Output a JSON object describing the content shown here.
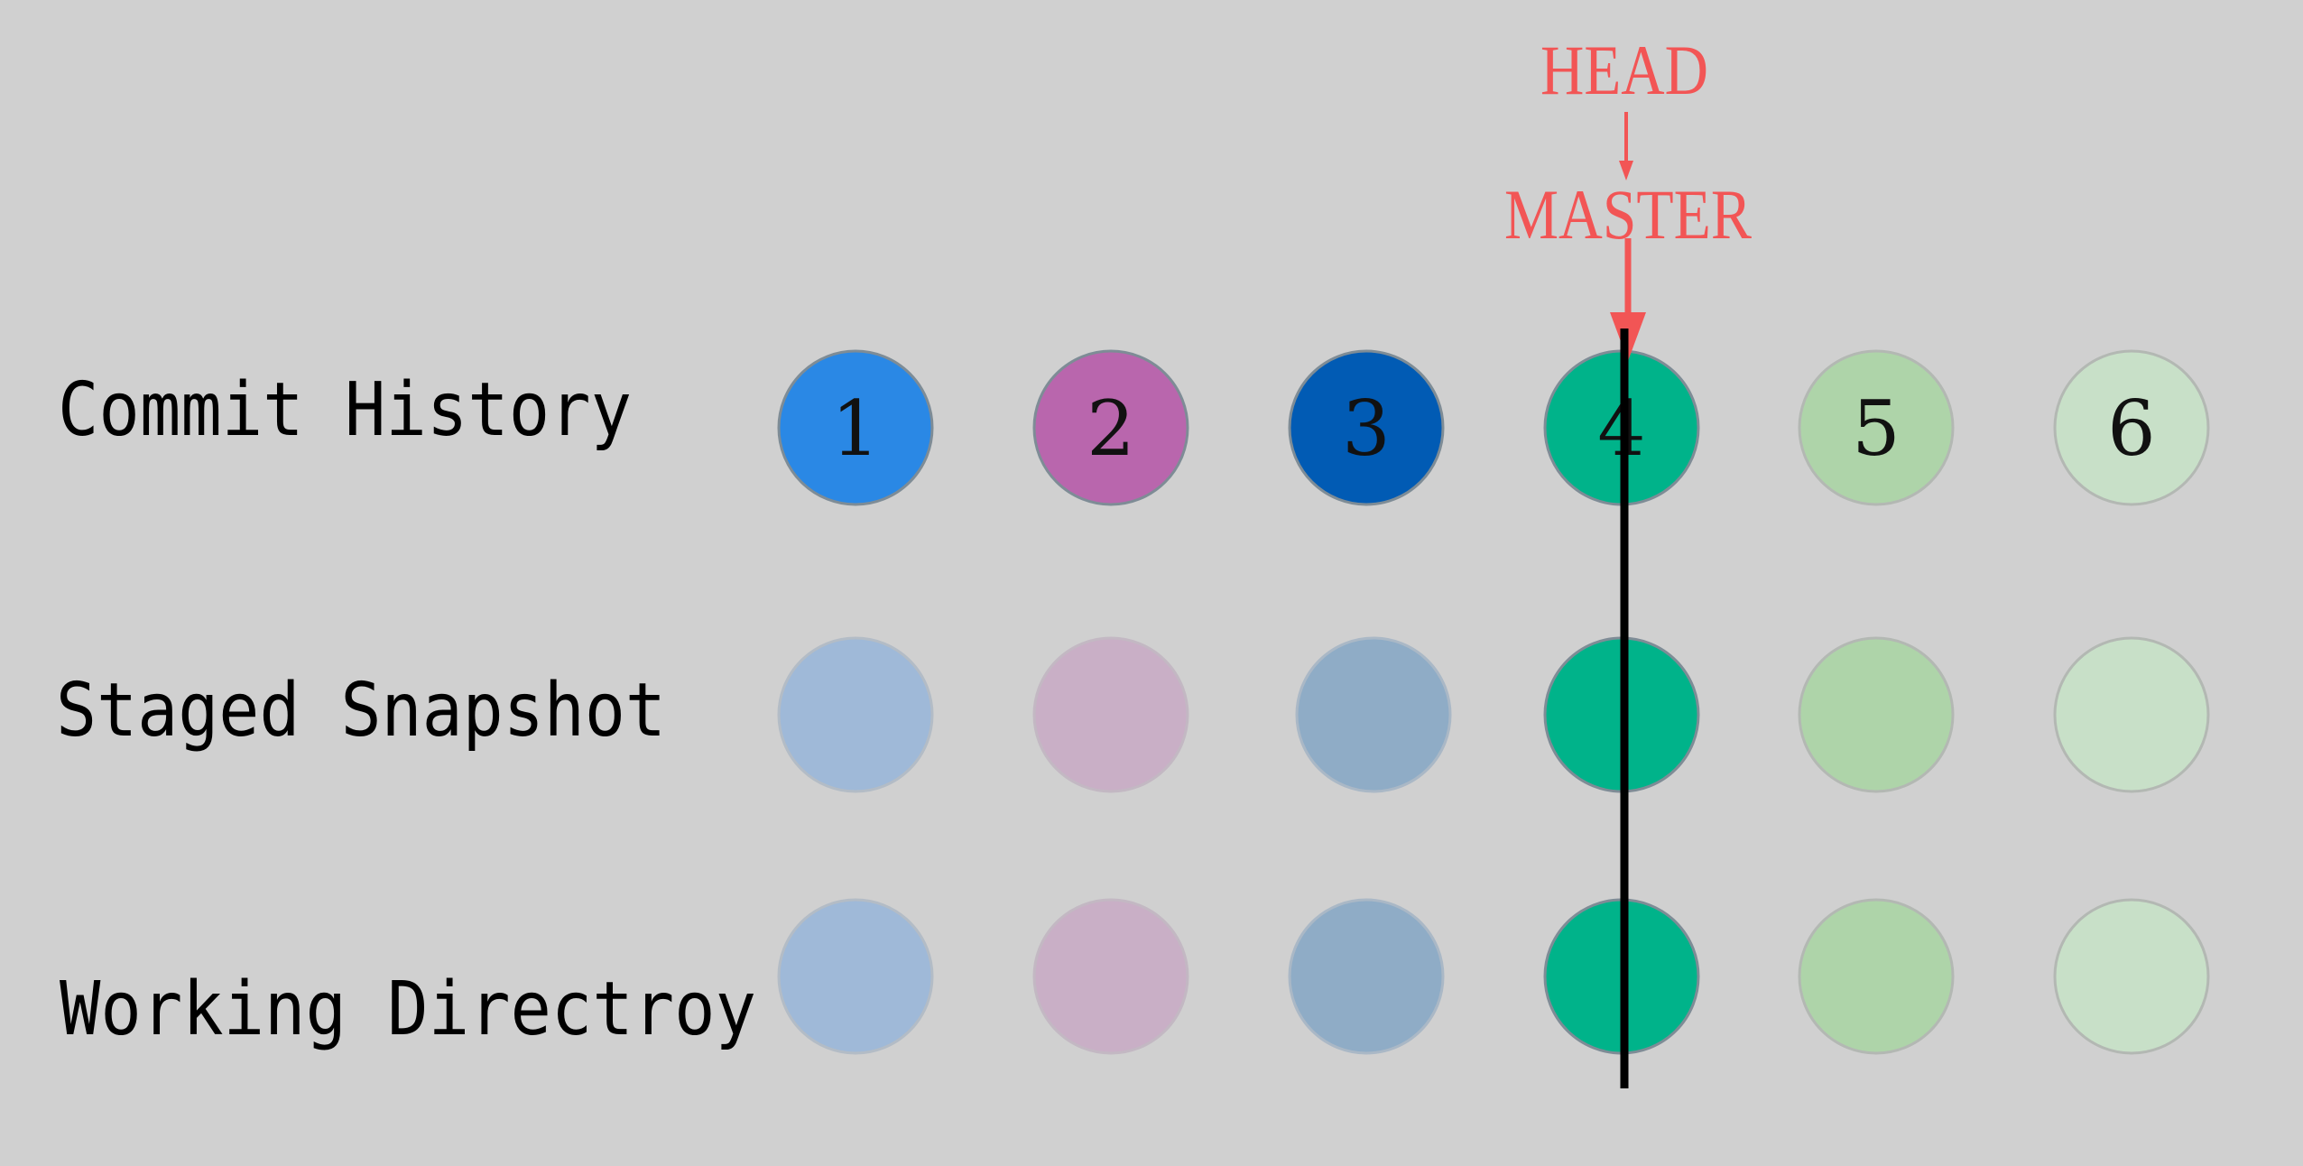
{
  "rows": [
    {
      "label": "Commit History",
      "nodes": [
        {
          "number": "1",
          "color": "#2a88e5",
          "stroke": "#7e8c96"
        },
        {
          "number": "2",
          "color": "#b966ad",
          "stroke": "#7e8c96"
        },
        {
          "number": "3",
          "color": "#015bb4",
          "stroke": "#7e8c96"
        },
        {
          "number": "4",
          "color": "#00b38a",
          "stroke": "#7e8c96"
        },
        {
          "number": "5",
          "color": "#aed4a9",
          "stroke": "#b3b8b3"
        },
        {
          "number": "6",
          "color": "#c8e0c8",
          "stroke": "#b3b8b3"
        }
      ]
    },
    {
      "label": "Staged Snapshot",
      "nodes": [
        {
          "number": "",
          "color": "#9fb9d8",
          "stroke": "#b3bcc6"
        },
        {
          "number": "",
          "color": "#c9afc6",
          "stroke": "#c3b8c3"
        },
        {
          "number": "",
          "color": "#8facc6",
          "stroke": "#aab8c6"
        },
        {
          "number": "",
          "color": "#00b38a",
          "stroke": "#7e8c96"
        },
        {
          "number": "",
          "color": "#aed4a9",
          "stroke": "#b3b8b3"
        },
        {
          "number": "",
          "color": "#c8e0c8",
          "stroke": "#b3b8b3"
        }
      ]
    },
    {
      "label": "Working Directroy",
      "nodes": [
        {
          "number": "",
          "color": "#9fb9d8",
          "stroke": "#b3bcc6"
        },
        {
          "number": "",
          "color": "#c9afc6",
          "stroke": "#c3b8c3"
        },
        {
          "number": "",
          "color": "#8facc6",
          "stroke": "#aab8c6"
        },
        {
          "number": "",
          "color": "#00b38a",
          "stroke": "#7e8c96"
        },
        {
          "number": "",
          "color": "#aed4a9",
          "stroke": "#b3b8b3"
        },
        {
          "number": "",
          "color": "#c8e0c8",
          "stroke": "#b3b8b3"
        }
      ]
    }
  ],
  "refs": {
    "head_label": "HEAD",
    "master_label": "MASTER",
    "color": "#f25555",
    "points_to_commit": "4"
  },
  "divider_color": "#000000",
  "background": "#d0d0d0"
}
